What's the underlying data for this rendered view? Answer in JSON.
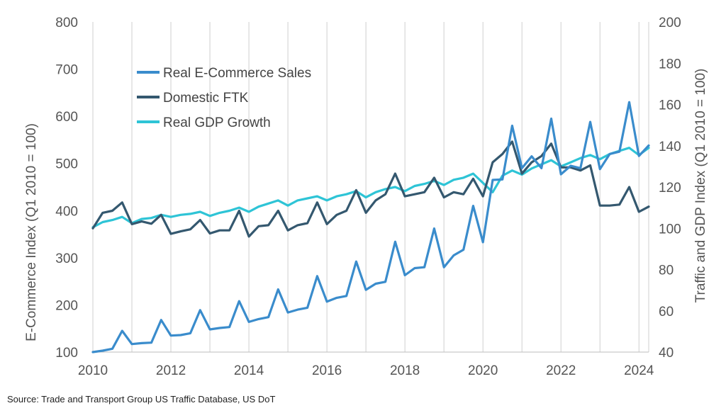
{
  "chart_data": {
    "type": "line",
    "x_tick_labels": [
      "2010",
      "2012",
      "2014",
      "2016",
      "2018",
      "2020",
      "2022",
      "2024"
    ],
    "xlim": [
      2010,
      2024.25
    ],
    "left_axis": {
      "label": "E-Commerce Index (Q1 2010 = 100)",
      "ylim": [
        100,
        800
      ],
      "ticks": [
        "100",
        "200",
        "300",
        "400",
        "500",
        "600",
        "700",
        "800"
      ]
    },
    "right_axis": {
      "label": "Traffic and GDP Index (Q1 2010 = 100)",
      "ylim": [
        40,
        200
      ],
      "ticks": [
        "40",
        "60",
        "80",
        "100",
        "120",
        "140",
        "160",
        "180",
        "200"
      ]
    },
    "grid": "vertical",
    "legend_position": "top-left",
    "x": [
      2010,
      2010.25,
      2010.5,
      2010.75,
      2011,
      2011.25,
      2011.5,
      2011.75,
      2012,
      2012.25,
      2012.5,
      2012.75,
      2013,
      2013.25,
      2013.5,
      2013.75,
      2014,
      2014.25,
      2014.5,
      2014.75,
      2015,
      2015.25,
      2015.5,
      2015.75,
      2016,
      2016.25,
      2016.5,
      2016.75,
      2017,
      2017.25,
      2017.5,
      2017.75,
      2018,
      2018.25,
      2018.5,
      2018.75,
      2019,
      2019.25,
      2019.5,
      2019.75,
      2020,
      2020.25,
      2020.5,
      2020.75,
      2021,
      2021.25,
      2021.5,
      2021.75,
      2022,
      2022.25,
      2022.5,
      2022.75,
      2023,
      2023.25,
      2023.5,
      2023.75,
      2024,
      2024.25
    ],
    "series": [
      {
        "name": "Real E-Commerce Sales",
        "axis": "left",
        "color": "#3a8ccc",
        "values": [
          100,
          103,
          107,
          145,
          117,
          119,
          120,
          168,
          135,
          136,
          140,
          189,
          148,
          151,
          153,
          208,
          164,
          170,
          174,
          233,
          184,
          190,
          194,
          261,
          207,
          215,
          219,
          292,
          232,
          245,
          249,
          334,
          263,
          278,
          280,
          362,
          280,
          305,
          317,
          410,
          333,
          465,
          466,
          580,
          490,
          515,
          490,
          595,
          477,
          495,
          490,
          588,
          488,
          520,
          525,
          630,
          516,
          538
        ]
      },
      {
        "name": "Domestic FTK",
        "axis": "right",
        "color": "#34586f",
        "values": [
          100,
          107.5,
          108.5,
          112.5,
          102,
          103.3,
          102.2,
          106.5,
          97.3,
          98.5,
          99.5,
          104,
          97.5,
          99,
          99,
          108.5,
          96,
          101,
          101.5,
          108.5,
          99,
          101.5,
          102.5,
          112.5,
          102,
          106.5,
          108.5,
          118.5,
          107.5,
          113.5,
          116.5,
          126.5,
          115.5,
          116.5,
          117.5,
          124.5,
          115,
          117.5,
          116.5,
          124,
          115.5,
          132,
          136,
          142,
          126.5,
          132,
          135,
          141,
          129.5,
          129.5,
          128,
          130.5,
          111,
          111,
          111.5,
          120,
          108,
          110.5
        ]
      },
      {
        "name": "Real GDP Growth",
        "axis": "right",
        "color": "#2ec4d6",
        "values": [
          100.5,
          103,
          104,
          105.5,
          102.5,
          104.5,
          105,
          106.5,
          105.5,
          106.5,
          107,
          108,
          106,
          107.5,
          108.5,
          110,
          108,
          110.5,
          112,
          113.5,
          111,
          113.5,
          114.5,
          115.5,
          113.5,
          115.5,
          116.5,
          118,
          115,
          117.5,
          119,
          120,
          118,
          120.5,
          121.5,
          123,
          121,
          123.5,
          124.5,
          126.5,
          122,
          117.5,
          125.5,
          128,
          126,
          129,
          131,
          133,
          130,
          132,
          134,
          135.5,
          133.5,
          136,
          137.5,
          139,
          135.5,
          139
        ]
      }
    ]
  },
  "source": "Source: Trade and Transport Group US Traffic Database, US DoT"
}
